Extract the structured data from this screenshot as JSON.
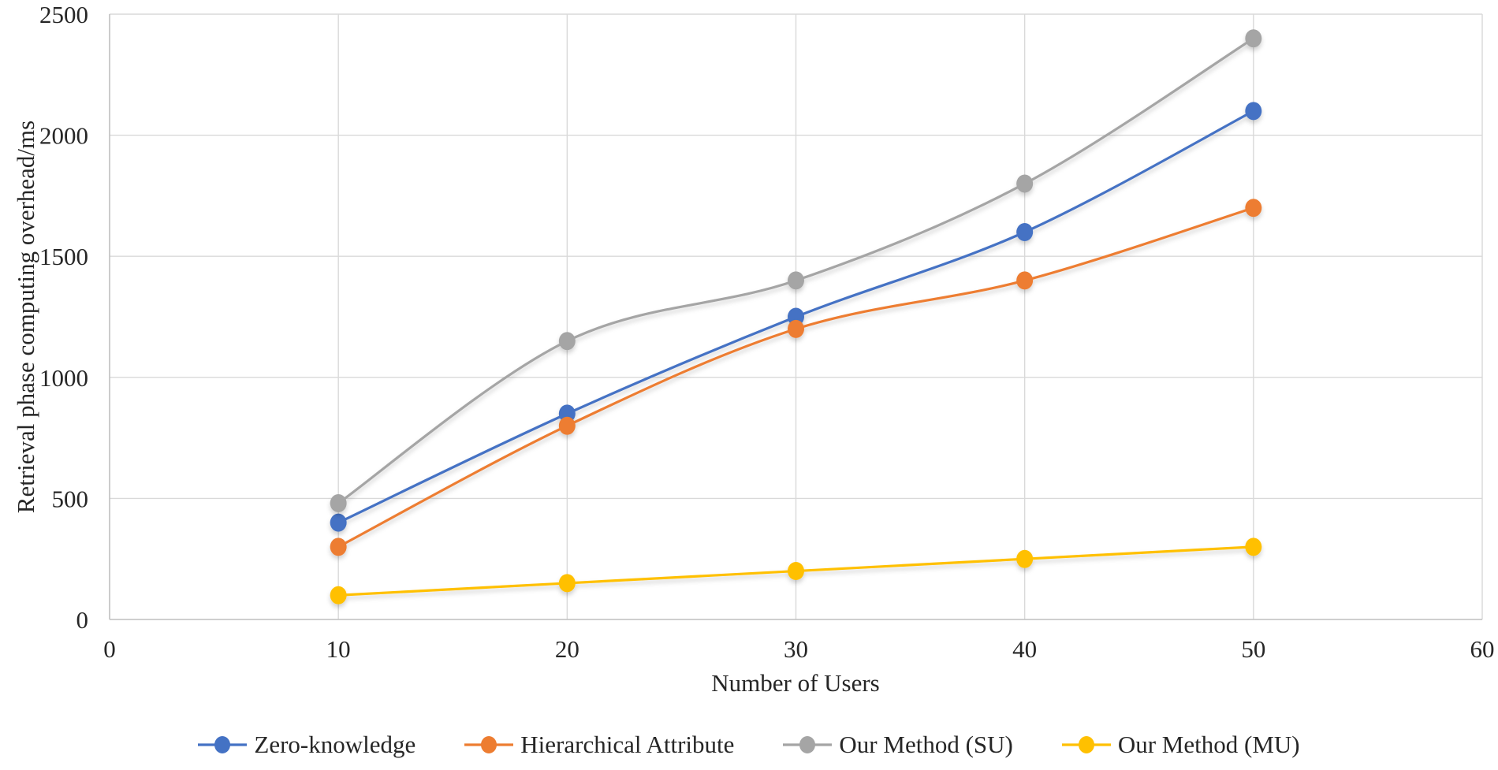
{
  "chart_data": {
    "type": "line",
    "title": "",
    "xlabel": "Number of Users",
    "ylabel": "Retrieval phase computing overhead/ms",
    "x": [
      10,
      20,
      30,
      40,
      50
    ],
    "xlim": [
      0,
      60
    ],
    "ylim": [
      0,
      2500
    ],
    "xticks": [
      0,
      10,
      20,
      30,
      40,
      50,
      60
    ],
    "yticks": [
      0,
      500,
      1000,
      1500,
      2000,
      2500
    ],
    "grid": true,
    "line_style": "smooth",
    "marker": "circle",
    "legend_position": "bottom",
    "series": [
      {
        "name": "Zero-knowledge",
        "color": "#4472C4",
        "values": [
          400,
          850,
          1250,
          1600,
          2100
        ]
      },
      {
        "name": "Hierarchical Attribute",
        "color": "#ED7D31",
        "values": [
          300,
          800,
          1200,
          1400,
          1700
        ]
      },
      {
        "name": "Our Method (SU)",
        "color": "#A5A5A5",
        "values": [
          480,
          1150,
          1400,
          1800,
          2400
        ]
      },
      {
        "name": "Our Method (MU)",
        "color": "#FFC000",
        "values": [
          100,
          150,
          200,
          250,
          300
        ]
      }
    ],
    "theme": {
      "background": "#ffffff",
      "gridline_color": "#D9D9D9",
      "axis_line_color": "#BFBFBF",
      "text_color": "#262626"
    }
  }
}
